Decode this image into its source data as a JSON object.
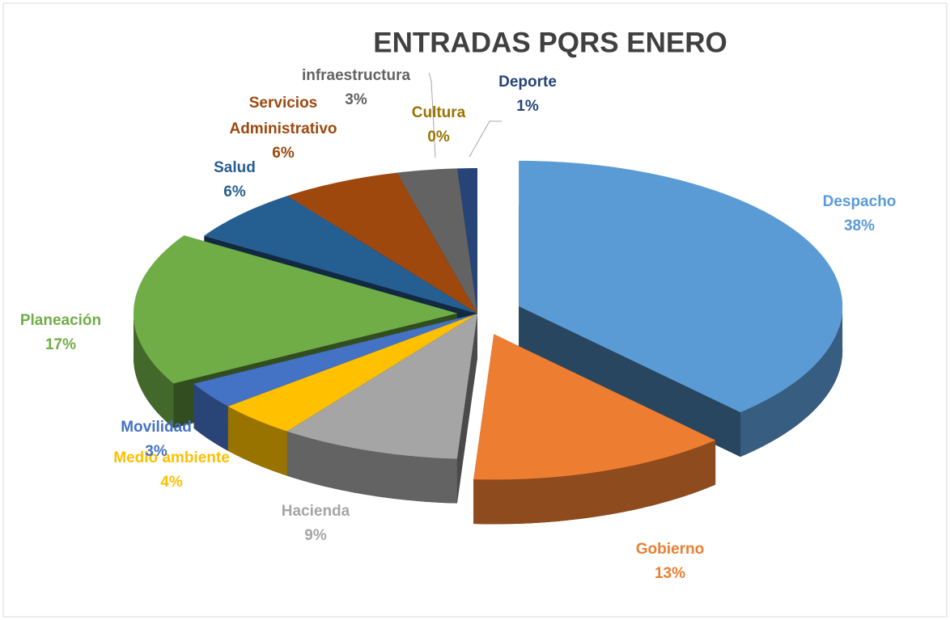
{
  "chart_data": {
    "type": "pie",
    "title": "ENTRADAS PQRS ENERO",
    "categories": [
      "Despacho",
      "Gobierno",
      "Hacienda",
      "Medio ambiente",
      "Movilidad",
      "Planeación",
      "Salud",
      "Servicios Administrativo",
      "infraestructura",
      "Cultura",
      "Deporte"
    ],
    "values": [
      38,
      13,
      9,
      4,
      3,
      17,
      6,
      6,
      3,
      0,
      1
    ],
    "value_labels": [
      "38%",
      "13%",
      "9%",
      "4%",
      "3%",
      "17%",
      "6%",
      "6%",
      "3%",
      "0%",
      "1%"
    ],
    "colors": [
      "#5b9bd5",
      "#ed7d31",
      "#a5a5a5",
      "#ffc000",
      "#4472c4",
      "#70ad47",
      "#255e91",
      "#9e480e",
      "#636363",
      "#997300",
      "#264478"
    ]
  }
}
